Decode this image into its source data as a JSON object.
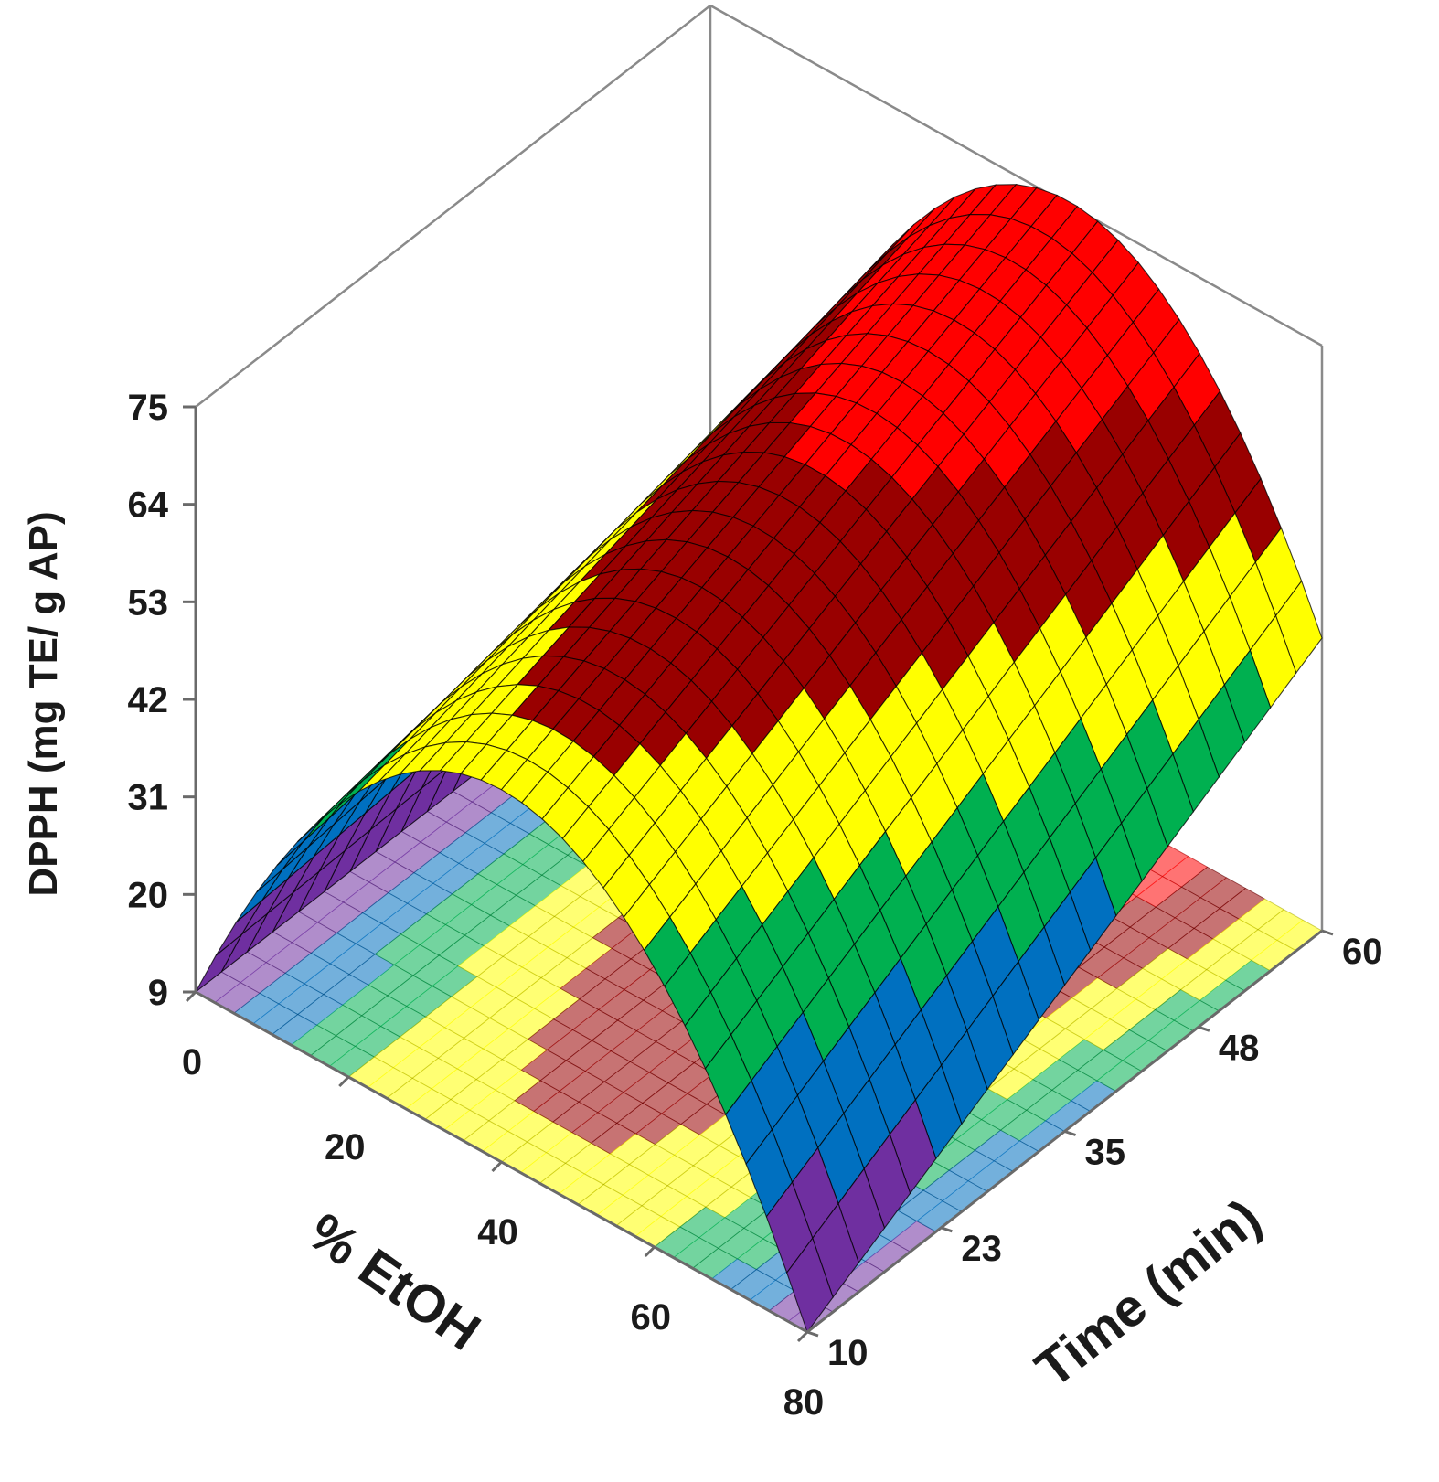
{
  "chart_data": {
    "type": "surface3d",
    "title": "",
    "xlabel": "% EtOH",
    "ylabel": "Time (min)",
    "zlabel": "DPPH (mg TE/ g AP)",
    "x_ticks": [
      0,
      20,
      40,
      60,
      80
    ],
    "y_ticks": [
      10,
      23,
      35,
      48,
      60
    ],
    "z_ticks": [
      9,
      20,
      31,
      42,
      53,
      64,
      75
    ],
    "xlim": [
      0,
      80
    ],
    "ylim": [
      10,
      60
    ],
    "zlim": [
      9,
      75
    ],
    "grid": false,
    "floor_contour_projection": true,
    "color_bands": [
      {
        "min": 9,
        "max": 20,
        "color": "#6f2fa0"
      },
      {
        "min": 20,
        "max": 31,
        "color": "#0070c0"
      },
      {
        "min": 31,
        "max": 42,
        "color": "#00b050"
      },
      {
        "min": 42,
        "max": 53,
        "color": "#ffff00"
      },
      {
        "min": 53,
        "max": 64,
        "color": "#990000"
      },
      {
        "min": 64,
        "max": 75,
        "color": "#ff0000"
      }
    ],
    "surface_points": [
      {
        "etoh": 0,
        "time": 10,
        "dpph": 9
      },
      {
        "etoh": 0,
        "time": 60,
        "dpph": 9
      },
      {
        "etoh": 40,
        "time": 10,
        "dpph": 51
      },
      {
        "etoh": 40,
        "time": 60,
        "dpph": 74
      },
      {
        "etoh": 80,
        "time": 10,
        "dpph": 9
      },
      {
        "etoh": 80,
        "time": 60,
        "dpph": 42
      }
    ]
  }
}
